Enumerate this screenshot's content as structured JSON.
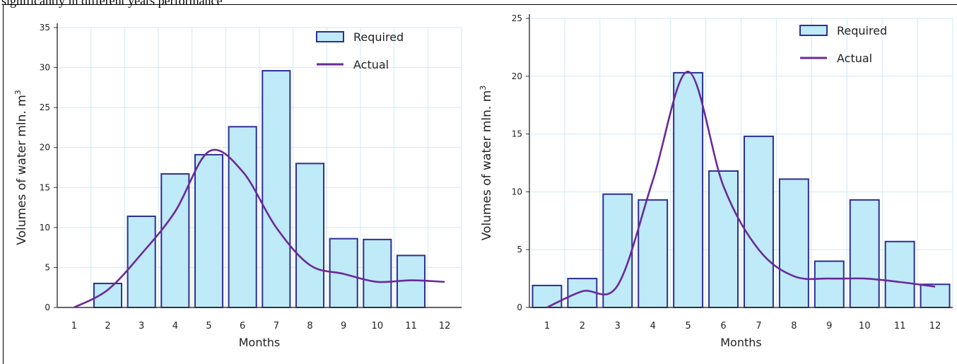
{
  "caption": "significantly in different years performance",
  "chart_data": [
    {
      "type": "bar",
      "ylabel": "Volumes of water mln. m",
      "ylabel_sup": "3",
      "xlabel": "Months",
      "ylim": [
        0,
        35
      ],
      "yticks": [
        0,
        5,
        10,
        15,
        20,
        25,
        30,
        35
      ],
      "categories": [
        "1",
        "2",
        "3",
        "4",
        "5",
        "6",
        "7",
        "8",
        "9",
        "10",
        "11",
        "12"
      ],
      "series": [
        {
          "name": "Required",
          "kind": "bar",
          "values": [
            0,
            3,
            11.4,
            16.7,
            19.1,
            22.6,
            29.6,
            18.0,
            8.6,
            8.5,
            6.5,
            0
          ]
        },
        {
          "name": "Actual",
          "kind": "line",
          "values": [
            0,
            2.2,
            6.7,
            12.0,
            19.5,
            17.0,
            10.0,
            5.3,
            4.2,
            3.2,
            3.4,
            3.2
          ]
        }
      ],
      "legend_position": "top-right",
      "grid": true
    },
    {
      "type": "bar",
      "ylabel": "Volumes of water mln. m",
      "ylabel_sup": "3",
      "xlabel": "Months",
      "ylim": [
        0,
        25
      ],
      "yticks": [
        0,
        5,
        10,
        15,
        20,
        25
      ],
      "categories": [
        "1",
        "2",
        "3",
        "4",
        "5",
        "6",
        "7",
        "8",
        "9",
        "10",
        "11",
        "12"
      ],
      "series": [
        {
          "name": "Required",
          "kind": "bar",
          "values": [
            1.9,
            2.5,
            9.8,
            9.3,
            20.3,
            11.8,
            14.8,
            11.1,
            4.0,
            9.3,
            5.7,
            2.0
          ]
        },
        {
          "name": "Actual",
          "kind": "line",
          "values": [
            0,
            1.4,
            1.9,
            11.0,
            20.4,
            10.5,
            5.0,
            2.7,
            2.5,
            2.5,
            2.2,
            1.8
          ]
        }
      ],
      "legend_position": "top-right",
      "grid": true
    }
  ],
  "colors": {
    "bar_fill": "#bfeaf8",
    "bar_stroke": "#2b2f96",
    "line": "#6a2a98",
    "grid": "#cfeaf5",
    "axis": "#333333",
    "text": "#222222"
  }
}
